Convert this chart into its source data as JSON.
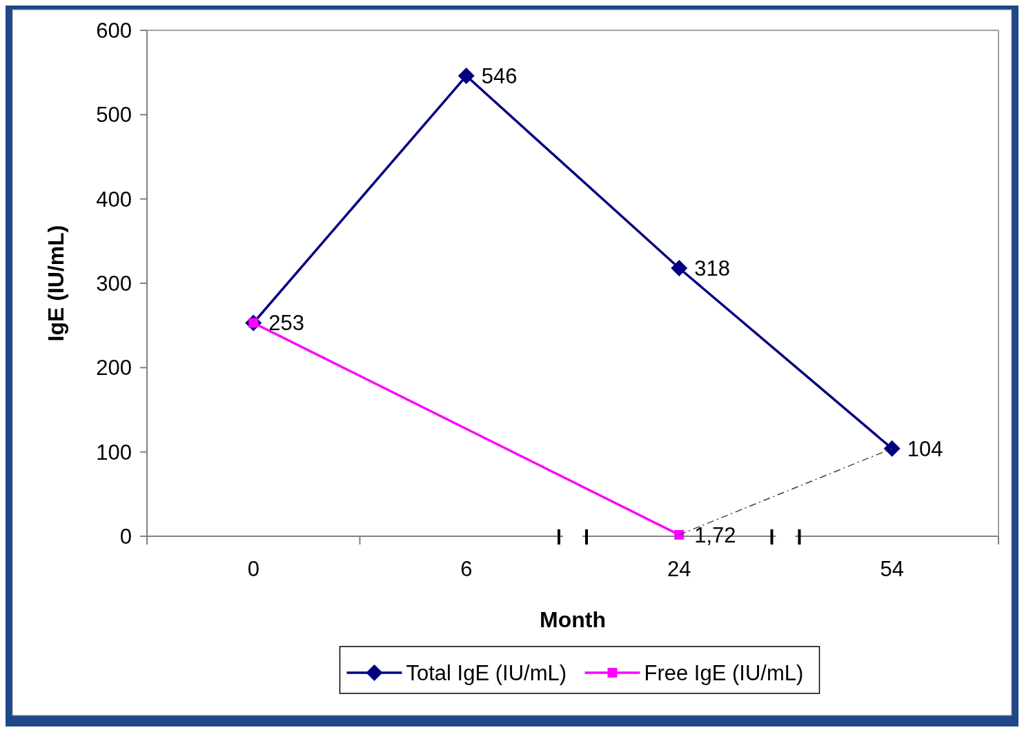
{
  "chart_data": {
    "type": "line",
    "xlabel": "Month",
    "ylabel": "IgE (IU/mL)",
    "categories": [
      "0",
      "6",
      "24",
      "54"
    ],
    "ylim": [
      0,
      600
    ],
    "yticks": [
      0,
      100,
      200,
      300,
      400,
      500,
      600
    ],
    "grid": false,
    "legend": "bottom",
    "series": [
      {
        "name": "Total IgE (IU/mL)",
        "color": "#000080",
        "marker": "diamond",
        "line_style": "solid",
        "values": [
          253,
          546,
          318,
          104
        ],
        "value_labels": [
          "253",
          "546",
          "318",
          "104"
        ]
      },
      {
        "name": "Free IgE (IU/mL)",
        "color": "#ff00ff",
        "marker": "square",
        "line_style": "solid",
        "values": [
          253,
          null,
          1.72,
          null
        ],
        "value_labels": [
          null,
          null,
          "1,72",
          null
        ]
      },
      {
        "color": "#404040",
        "marker": "none",
        "line_style": "dashed",
        "values": [
          null,
          null,
          1.72,
          104
        ]
      }
    ]
  }
}
